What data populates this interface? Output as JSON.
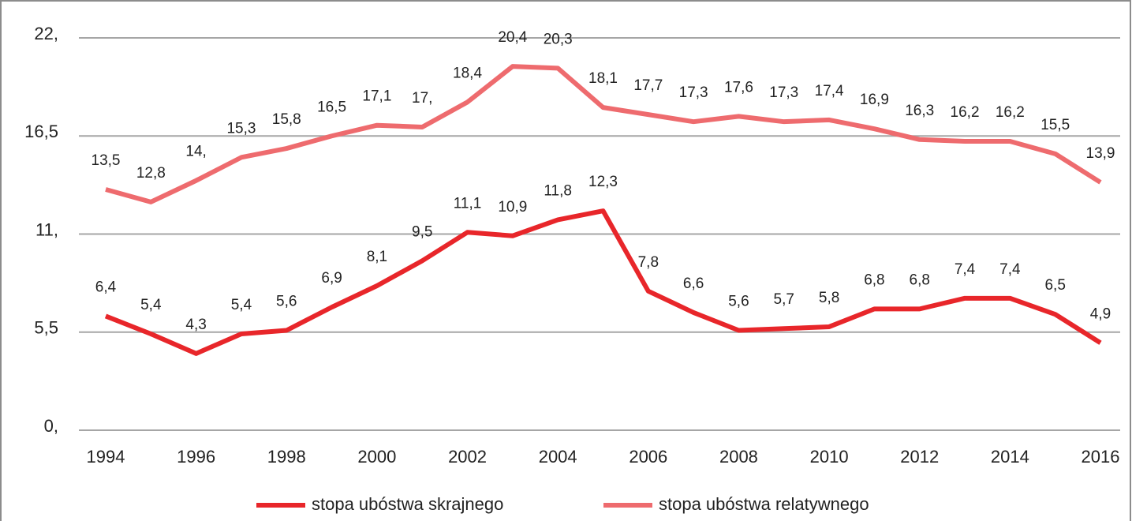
{
  "chart_data": {
    "type": "line",
    "x": [
      1994,
      1995,
      1996,
      1997,
      1998,
      1999,
      2000,
      2001,
      2002,
      2003,
      2004,
      2005,
      2006,
      2007,
      2008,
      2009,
      2010,
      2011,
      2012,
      2013,
      2014,
      2015,
      2016
    ],
    "xlim": [
      1994,
      2016
    ],
    "xticks": [
      1994,
      1996,
      1998,
      2000,
      2002,
      2004,
      2006,
      2008,
      2010,
      2012,
      2014,
      2016
    ],
    "ylim": [
      0,
      22
    ],
    "yticks": [
      {
        "value": 0,
        "label": "0,"
      },
      {
        "value": 5.5,
        "label": "5,5"
      },
      {
        "value": 11,
        "label": "11,"
      },
      {
        "value": 16.5,
        "label": "16,5"
      },
      {
        "value": 22,
        "label": "22,"
      }
    ],
    "grid": true,
    "legend": "bottom",
    "series": [
      {
        "name": "stopa ubóstwa skrajnego",
        "color": "#e8262a",
        "values": [
          6.4,
          5.4,
          4.3,
          5.4,
          5.6,
          6.9,
          8.1,
          9.5,
          11.1,
          10.9,
          11.8,
          12.3,
          7.8,
          6.6,
          5.6,
          5.7,
          5.8,
          6.8,
          6.8,
          7.4,
          7.4,
          6.5,
          4.9
        ],
        "value_labels": [
          "6,4",
          "5,4",
          "4,3",
          "5,4",
          "5,6",
          "6,9",
          "8,1",
          "9,5",
          "11,1",
          "10,9",
          "11,8",
          "12,3",
          "7,8",
          "6,6",
          "5,6",
          "5,7",
          "5,8",
          "6,8",
          "6,8",
          "7,4",
          "7,4",
          "6,5",
          "4,9"
        ]
      },
      {
        "name": "stopa ubóstwa relatywnego",
        "color": "#ee6b6e",
        "values": [
          13.5,
          12.8,
          14,
          15.3,
          15.8,
          16.5,
          17.1,
          17,
          18.4,
          20.4,
          20.3,
          18.1,
          17.7,
          17.3,
          17.6,
          17.3,
          17.4,
          16.9,
          16.3,
          16.2,
          16.2,
          15.5,
          13.9
        ],
        "value_labels": [
          "13,5",
          "12,8",
          "14,",
          "15,3",
          "15,8",
          "16,5",
          "17,1",
          "17,",
          "18,4",
          "20,4",
          "20,3",
          "18,1",
          "17,7",
          "17,3",
          "17,6",
          "17,3",
          "17,4",
          "16,9",
          "16,3",
          "16,2",
          "16,2",
          "15,5",
          "13,9"
        ]
      }
    ]
  }
}
